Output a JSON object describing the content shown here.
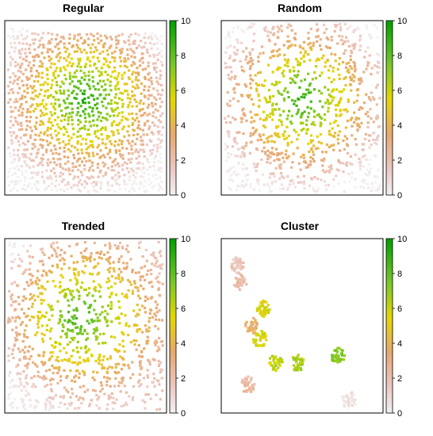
{
  "charts": [
    {
      "title": "Regular",
      "type": "scatter",
      "pattern": "regular",
      "value_range": [
        0,
        10
      ],
      "legend_ticks": [
        "0",
        "2",
        "4",
        "6",
        "8",
        "10"
      ],
      "peak_center": [
        0.5,
        0.55
      ],
      "peak_value": 9.5,
      "grid": false,
      "legend_placement": "right"
    },
    {
      "title": "Random",
      "type": "scatter",
      "pattern": "random",
      "value_range": [
        0,
        10
      ],
      "legend_ticks": [
        "0",
        "2",
        "4",
        "6",
        "8",
        "10"
      ],
      "peak_center": [
        0.5,
        0.55
      ],
      "peak_value": 9.2,
      "grid": false,
      "legend_placement": "right"
    },
    {
      "title": "Trended",
      "type": "scatter",
      "pattern": "trended",
      "value_range": [
        0,
        10
      ],
      "legend_ticks": [
        "0",
        "2",
        "4",
        "6",
        "8",
        "10"
      ],
      "peak_center": [
        0.45,
        0.55
      ],
      "peak_value": 9.0,
      "grid": false,
      "legend_placement": "right"
    },
    {
      "title": "Cluster",
      "type": "scatter",
      "pattern": "cluster",
      "value_range": [
        0,
        10
      ],
      "legend_ticks": [
        "0",
        "2",
        "4",
        "6",
        "8",
        "10"
      ],
      "clusters": [
        {
          "x": 0.08,
          "y": 0.86,
          "value": 1.8
        },
        {
          "x": 0.1,
          "y": 0.76,
          "value": 2.2
        },
        {
          "x": 0.25,
          "y": 0.6,
          "value": 5.5
        },
        {
          "x": 0.18,
          "y": 0.5,
          "value": 3.5
        },
        {
          "x": 0.23,
          "y": 0.42,
          "value": 5.8
        },
        {
          "x": 0.33,
          "y": 0.28,
          "value": 6.2
        },
        {
          "x": 0.47,
          "y": 0.28,
          "value": 6.8
        },
        {
          "x": 0.73,
          "y": 0.32,
          "value": 7.2
        },
        {
          "x": 0.15,
          "y": 0.15,
          "value": 2.2
        },
        {
          "x": 0.8,
          "y": 0.06,
          "value": 0.5
        }
      ],
      "grid": false,
      "legend_placement": "right"
    }
  ]
}
